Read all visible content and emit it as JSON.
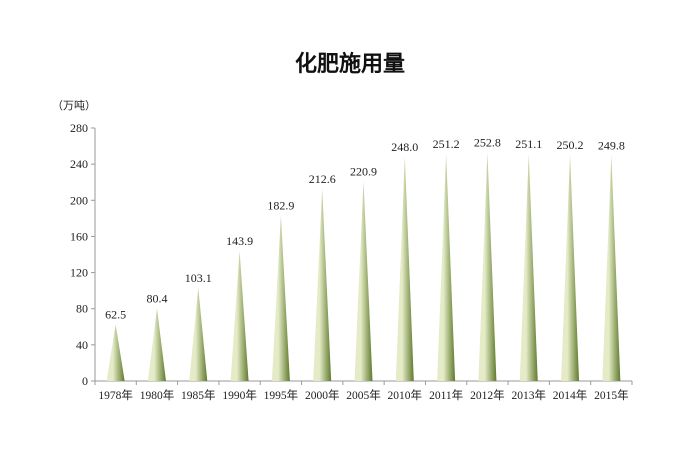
{
  "chart_data": {
    "type": "bar",
    "title": "化肥施用量",
    "unit": "（万吨）",
    "categories": [
      "1978年",
      "1980年",
      "1985年",
      "1990年",
      "1995年",
      "2000年",
      "2005年",
      "2010年",
      "2011年",
      "2012年",
      "2013年",
      "2014年",
      "2015年"
    ],
    "values": [
      62.5,
      80.4,
      103.1,
      143.9,
      182.9,
      212.6,
      220.9,
      248.0,
      251.2,
      252.8,
      251.1,
      250.2,
      249.8
    ],
    "value_labels": [
      "62.5",
      "80.4",
      "103.1",
      "143.9",
      "182.9",
      "212.6",
      "220.9",
      "248.0",
      "251.2",
      "252.8",
      "251.1",
      "250.2",
      "249.8"
    ],
    "yticks": [
      "0",
      "40",
      "80",
      "120",
      "160",
      "200",
      "240",
      "280"
    ],
    "ylim": [
      0,
      280
    ],
    "grid": false,
    "legend": "none",
    "bar_shape": "cone",
    "colors": {
      "bar_light": "#e4ebc6",
      "bar_dark": "#5f7a2c",
      "axis": "#9a9a9a"
    }
  }
}
